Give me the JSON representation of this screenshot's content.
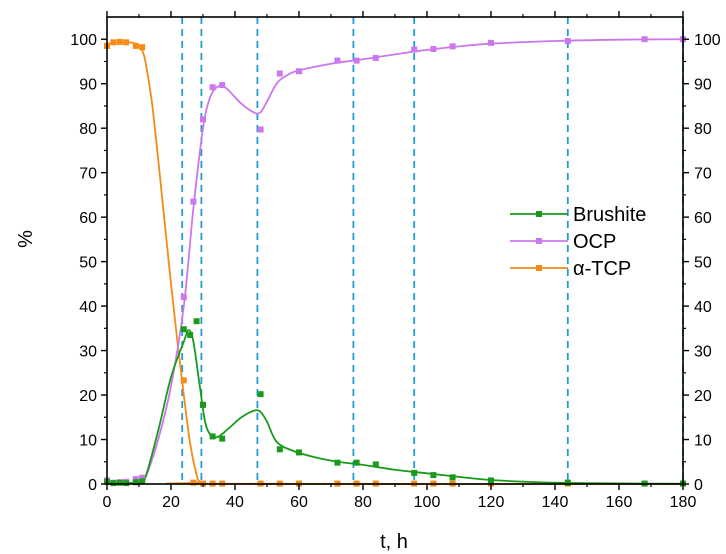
{
  "chart_data": {
    "type": "scatter",
    "xlabel": "t, h",
    "ylabel": "%",
    "xlim": [
      0,
      180
    ],
    "ylim": [
      0,
      105
    ],
    "x_ticks": [
      "0",
      "20",
      "40",
      "60",
      "80",
      "100",
      "120",
      "140",
      "160",
      "180"
    ],
    "y_ticks": [
      "0",
      "10",
      "20",
      "30",
      "40",
      "50",
      "60",
      "70",
      "80",
      "90",
      "100"
    ],
    "y_ticks_right": [
      "0",
      "10",
      "20",
      "30",
      "40",
      "50",
      "60",
      "70",
      "80",
      "90",
      "100"
    ],
    "grid": false,
    "legend_position": "right",
    "vertical_markers_x": [
      23.5,
      29.5,
      47,
      77,
      96,
      144,
      180
    ],
    "vertical_marker_color": "#1f9bd6",
    "series": [
      {
        "name": "Brushite",
        "color": "#1a9a1a",
        "x": [
          0,
          2,
          4,
          6,
          9,
          11,
          24,
          26,
          28,
          30,
          33,
          36,
          48,
          54,
          60,
          72,
          78,
          84,
          96,
          102,
          108,
          120,
          144,
          168,
          180
        ],
        "y": [
          0.5,
          0.2,
          0.3,
          0.2,
          0.4,
          0.6,
          34.8,
          33.5,
          36.6,
          17.8,
          10.7,
          10.2,
          20.2,
          7.8,
          7.1,
          4.8,
          4.8,
          4.4,
          2.5,
          2.0,
          1.5,
          0.8,
          0.3,
          0.1,
          0.1
        ],
        "fit_x": [
          0,
          10,
          12,
          16,
          20,
          24,
          25.5,
          27,
          29,
          31,
          34,
          38,
          42,
          46,
          48,
          50,
          53,
          58,
          65,
          72,
          80,
          90,
          100,
          110,
          120,
          135,
          150,
          165,
          180
        ],
        "fit_y": [
          0.3,
          0.3,
          1.5,
          12,
          24,
          32,
          34.6,
          32,
          22,
          13,
          10.5,
          12.5,
          15,
          16.5,
          16.2,
          14,
          9.5,
          7.5,
          6,
          5,
          4.3,
          3.2,
          2.4,
          1.6,
          0.9,
          0.4,
          0.2,
          0.1,
          0.05
        ]
      },
      {
        "name": "OCP",
        "color": "#cc77ee",
        "x": [
          0,
          2,
          4,
          6,
          9,
          11,
          24,
          27,
          30,
          33,
          36,
          48,
          54,
          60,
          72,
          78,
          84,
          96,
          102,
          108,
          120,
          144,
          168,
          180
        ],
        "y": [
          0.8,
          0.3,
          0.4,
          0.5,
          1.1,
          1.4,
          42,
          63.5,
          82,
          89.2,
          89.7,
          79.7,
          92.3,
          92.8,
          95.2,
          95.2,
          95.8,
          97.7,
          97.8,
          98.4,
          99.2,
          99.6,
          100,
          100
        ],
        "fit_x": [
          0,
          10,
          12,
          16,
          20,
          24,
          27,
          30,
          32,
          34,
          36,
          38,
          42,
          46,
          48,
          50,
          53,
          56,
          60,
          70,
          80,
          90,
          100,
          110,
          120,
          140,
          160,
          180
        ],
        "fit_y": [
          0.3,
          0.3,
          1.5,
          10,
          22,
          40,
          62,
          80,
          86.5,
          89,
          89.5,
          88.5,
          85.5,
          83.5,
          83.6,
          86,
          90,
          91.8,
          93,
          94.5,
          95.5,
          96.6,
          97.6,
          98.4,
          99,
          99.6,
          99.9,
          100
        ]
      },
      {
        "name": "α-TCP",
        "color": "#f58a14",
        "x": [
          0,
          2,
          4,
          6,
          9,
          11,
          24,
          27,
          30,
          33,
          36,
          48,
          54,
          60,
          72,
          78,
          84,
          96,
          102,
          108,
          120,
          144,
          168,
          180
        ],
        "y": [
          98.5,
          99.3,
          99.4,
          99.3,
          98.5,
          98.2,
          23.3,
          0.3,
          0.1,
          0.1,
          0.1,
          0.1,
          0.1,
          0.1,
          0.1,
          0.1,
          0.1,
          0.1,
          0.1,
          0.1,
          0.1,
          0.1,
          0.1,
          0.1
        ],
        "fit_x": [
          0,
          4,
          8,
          10,
          11,
          12,
          14,
          16,
          18,
          20,
          22,
          24,
          26,
          28,
          29,
          30,
          180
        ],
        "fit_y": [
          99,
          99.3,
          99.2,
          98.5,
          97.5,
          95,
          86,
          73,
          59,
          45,
          32,
          20,
          9,
          2,
          0.4,
          0.05,
          0
        ]
      }
    ]
  }
}
